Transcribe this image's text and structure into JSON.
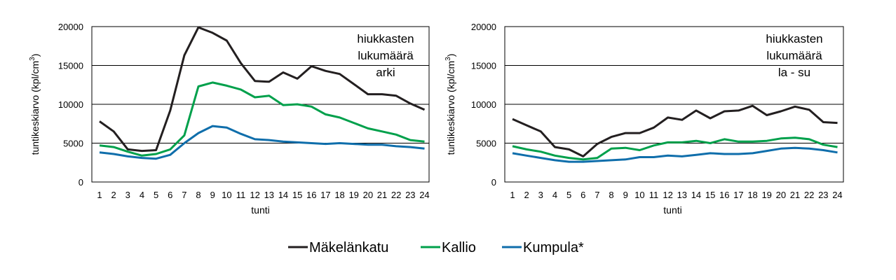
{
  "legend": [
    {
      "name": "Mäkelänkatu",
      "color": "#231f20"
    },
    {
      "name": "Kallio",
      "color": "#00a04b"
    },
    {
      "name": "Kumpula*",
      "color": "#0f6eab"
    }
  ],
  "chart_data": [
    {
      "type": "line",
      "annotation": [
        "hiukkasten",
        "lukumäärä",
        "arki"
      ],
      "xlabel": "tunti",
      "ylabel": "tuntikeskiarvo (kpl/cm",
      "ylabel_sup": "3",
      "ylabel_close": ")",
      "ylim": [
        0,
        20000
      ],
      "yticks": [
        0,
        5000,
        10000,
        15000,
        20000
      ],
      "grid": "horizontal",
      "x": [
        1,
        2,
        3,
        4,
        5,
        6,
        7,
        8,
        9,
        10,
        11,
        12,
        13,
        14,
        15,
        16,
        17,
        18,
        19,
        20,
        21,
        22,
        23,
        24
      ],
      "series": [
        {
          "name": "Mäkelänkatu",
          "color": "#231f20",
          "values": [
            7800,
            6500,
            4200,
            4000,
            4100,
            9200,
            16300,
            19900,
            19200,
            18200,
            15300,
            13000,
            12900,
            14100,
            13300,
            14900,
            14300,
            13900,
            12600,
            11300,
            11300,
            11100,
            10100,
            9300
          ]
        },
        {
          "name": "Kallio",
          "color": "#00a04b",
          "values": [
            4700,
            4500,
            3900,
            3400,
            3600,
            4200,
            6000,
            12300,
            12800,
            12400,
            11900,
            10900,
            11100,
            9900,
            10000,
            9700,
            8700,
            8300,
            7600,
            6900,
            6500,
            6100,
            5400,
            5200
          ]
        },
        {
          "name": "Kumpula*",
          "color": "#0f6eab",
          "values": [
            3800,
            3600,
            3300,
            3100,
            3000,
            3500,
            5000,
            6300,
            7200,
            7000,
            6200,
            5500,
            5400,
            5200,
            5100,
            5000,
            4900,
            5000,
            4900,
            4800,
            4800,
            4600,
            4500,
            4300
          ]
        }
      ]
    },
    {
      "type": "line",
      "annotation": [
        "hiukkasten",
        "lukumäärä",
        "la - su"
      ],
      "xlabel": "tunti",
      "ylabel": "tuntikeskiarvo (kpl/cm",
      "ylabel_sup": "3",
      "ylabel_close": ")",
      "ylim": [
        0,
        20000
      ],
      "yticks": [
        0,
        5000,
        10000,
        15000,
        20000
      ],
      "grid": "horizontal",
      "x": [
        1,
        2,
        3,
        4,
        5,
        6,
        7,
        8,
        9,
        10,
        11,
        12,
        13,
        14,
        15,
        16,
        17,
        18,
        19,
        20,
        21,
        22,
        23,
        24
      ],
      "series": [
        {
          "name": "Mäkelänkatu",
          "color": "#231f20",
          "values": [
            8100,
            7300,
            6500,
            4500,
            4200,
            3300,
            4900,
            5800,
            6300,
            6300,
            7000,
            8300,
            8000,
            9200,
            8200,
            9100,
            9200,
            9800,
            8600,
            9100,
            9700,
            9300,
            7700,
            7600
          ]
        },
        {
          "name": "Kallio",
          "color": "#00a04b",
          "values": [
            4600,
            4200,
            3900,
            3400,
            3100,
            2900,
            3100,
            4300,
            4400,
            4100,
            4700,
            5100,
            5100,
            5300,
            5000,
            5500,
            5200,
            5200,
            5300,
            5600,
            5700,
            5500,
            4800,
            4500
          ]
        },
        {
          "name": "Kumpula*",
          "color": "#0f6eab",
          "values": [
            3700,
            3400,
            3100,
            2800,
            2600,
            2600,
            2700,
            2800,
            2900,
            3200,
            3200,
            3400,
            3300,
            3500,
            3700,
            3600,
            3600,
            3700,
            4000,
            4300,
            4400,
            4300,
            4100,
            3800
          ]
        }
      ]
    }
  ]
}
